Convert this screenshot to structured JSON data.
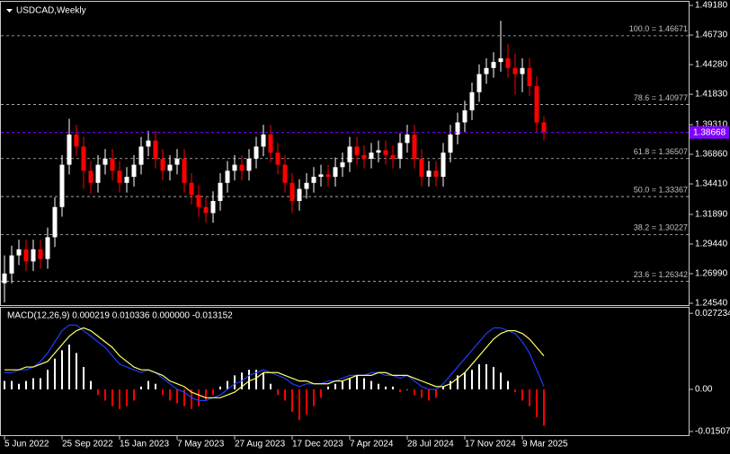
{
  "chart_data": [
    {
      "type": "candlestick",
      "title": "USDCAD,Weekly",
      "categories": [
        "5 Jun 2022",
        null,
        null,
        null,
        null,
        null,
        null,
        null,
        "25 Sep 2022",
        null,
        null,
        null,
        null,
        null,
        null,
        null,
        "15 Jan 2023",
        null,
        null,
        null,
        null,
        null,
        null,
        null,
        "7 May 2023",
        null,
        null,
        null,
        null,
        null,
        null,
        null,
        "27 Aug 2023",
        null,
        null,
        null,
        null,
        null,
        null,
        null,
        "17 Dec 2023",
        null,
        null,
        null,
        null,
        null,
        null,
        null,
        "7 Apr 2024",
        null,
        null,
        null,
        null,
        null,
        null,
        null,
        "28 Jul 2024",
        null,
        null,
        null,
        null,
        null,
        null,
        null,
        "17 Nov 2024",
        null,
        null,
        null,
        null,
        null,
        null,
        null,
        "9 Mar 2025",
        null,
        null,
        null
      ],
      "open": [
        1.262,
        1.27,
        1.285,
        1.29,
        1.28,
        1.29,
        1.282,
        1.3,
        1.325,
        1.36,
        1.385,
        1.375,
        1.355,
        1.345,
        1.36,
        1.365,
        1.355,
        1.345,
        1.35,
        1.36,
        1.375,
        1.38,
        1.365,
        1.355,
        1.36,
        1.365,
        1.345,
        1.335,
        1.325,
        1.32,
        1.33,
        1.345,
        1.355,
        1.36,
        1.355,
        1.365,
        1.375,
        1.385,
        1.37,
        1.36,
        1.345,
        1.33,
        1.34,
        1.345,
        1.35,
        1.352,
        1.35,
        1.358,
        1.362,
        1.375,
        1.368,
        1.365,
        1.37,
        1.372,
        1.368,
        1.365,
        1.378,
        1.385,
        1.365,
        1.35,
        1.355,
        1.35,
        1.37,
        1.385,
        1.395,
        1.405,
        1.42,
        1.435,
        1.44,
        1.445,
        1.448,
        1.44,
        1.435,
        1.44,
        1.425,
        1.395
      ],
      "high": [
        1.285,
        1.293,
        1.298,
        1.298,
        1.298,
        1.298,
        1.308,
        1.333,
        1.368,
        1.398,
        1.393,
        1.383,
        1.363,
        1.368,
        1.373,
        1.373,
        1.363,
        1.358,
        1.368,
        1.383,
        1.388,
        1.388,
        1.373,
        1.368,
        1.373,
        1.373,
        1.353,
        1.343,
        1.333,
        1.338,
        1.353,
        1.363,
        1.368,
        1.368,
        1.373,
        1.383,
        1.393,
        1.393,
        1.378,
        1.368,
        1.353,
        1.348,
        1.353,
        1.358,
        1.36,
        1.36,
        1.366,
        1.37,
        1.383,
        1.383,
        1.376,
        1.378,
        1.38,
        1.38,
        1.376,
        1.386,
        1.393,
        1.393,
        1.373,
        1.363,
        1.363,
        1.378,
        1.393,
        1.403,
        1.413,
        1.428,
        1.443,
        1.448,
        1.453,
        1.479,
        1.46,
        1.452,
        1.448,
        1.448,
        1.433,
        1.4
      ],
      "low": [
        1.246,
        1.262,
        1.277,
        1.272,
        1.272,
        1.274,
        1.274,
        1.292,
        1.317,
        1.352,
        1.367,
        1.34,
        1.336,
        1.337,
        1.352,
        1.347,
        1.337,
        1.337,
        1.342,
        1.352,
        1.367,
        1.357,
        1.347,
        1.347,
        1.352,
        1.337,
        1.327,
        1.317,
        1.312,
        1.312,
        1.322,
        1.337,
        1.347,
        1.347,
        1.347,
        1.357,
        1.367,
        1.362,
        1.352,
        1.337,
        1.32,
        1.322,
        1.332,
        1.337,
        1.342,
        1.342,
        1.342,
        1.35,
        1.354,
        1.36,
        1.357,
        1.357,
        1.362,
        1.36,
        1.357,
        1.357,
        1.37,
        1.357,
        1.342,
        1.342,
        1.342,
        1.342,
        1.362,
        1.377,
        1.387,
        1.397,
        1.412,
        1.427,
        1.432,
        1.437,
        1.432,
        1.418,
        1.42,
        1.417,
        1.387,
        1.38
      ],
      "close": [
        1.27,
        1.285,
        1.29,
        1.28,
        1.29,
        1.282,
        1.3,
        1.325,
        1.36,
        1.385,
        1.375,
        1.355,
        1.345,
        1.36,
        1.365,
        1.355,
        1.345,
        1.35,
        1.36,
        1.375,
        1.38,
        1.365,
        1.355,
        1.36,
        1.365,
        1.345,
        1.335,
        1.325,
        1.32,
        1.33,
        1.345,
        1.355,
        1.36,
        1.355,
        1.365,
        1.375,
        1.385,
        1.37,
        1.36,
        1.345,
        1.33,
        1.34,
        1.345,
        1.35,
        1.352,
        1.35,
        1.358,
        1.362,
        1.375,
        1.368,
        1.365,
        1.37,
        1.372,
        1.368,
        1.365,
        1.378,
        1.385,
        1.365,
        1.35,
        1.355,
        1.35,
        1.37,
        1.385,
        1.395,
        1.405,
        1.42,
        1.435,
        1.44,
        1.445,
        1.448,
        1.44,
        1.435,
        1.44,
        1.425,
        1.395,
        1.387
      ],
      "up_color": "#ffffff",
      "down_color": "#ff0000",
      "ylim": [
        1.2439,
        1.4948
      ],
      "yticks": [
        {
          "value": 1.4918,
          "label": "1.49180"
        },
        {
          "value": 1.4673,
          "label": "1.46730"
        },
        {
          "value": 1.4428,
          "label": "1.44280"
        },
        {
          "value": 1.4183,
          "label": "1.41830"
        },
        {
          "value": 1.3931,
          "label": "1.39310"
        },
        {
          "value": 1.3686,
          "label": "1.36860"
        },
        {
          "value": 1.3441,
          "label": "1.34410"
        },
        {
          "value": 1.3189,
          "label": "1.31890"
        },
        {
          "value": 1.2944,
          "label": "1.29440"
        },
        {
          "value": 1.2699,
          "label": "1.26990"
        },
        {
          "value": 1.2454,
          "label": "1.24540"
        }
      ],
      "levels": [
        {
          "value": 1.46671,
          "label": "100.0 = 1.46671"
        },
        {
          "value": 1.40977,
          "label": "78.6 = 1.40977"
        },
        {
          "value": 1.36507,
          "label": "61.8 = 1.36507"
        },
        {
          "value": 1.33367,
          "label": "50.0 = 1.33367"
        },
        {
          "value": 1.30227,
          "label": "38.2 = 1.30227"
        },
        {
          "value": 1.26342,
          "label": "23.6 = 1.26342"
        }
      ],
      "level_color": "#c0c0c0",
      "last_price": 1.38668,
      "last_price_color": "#8000ff"
    },
    {
      "type": "macd",
      "title": "MACD(12,26,9) 0.000219 0.010336 0.000000 -0.013152",
      "ylim": [
        -0.0167,
        0.0292
      ],
      "yticks": [
        0.027234,
        {
          "value": 0,
          "label": "0.00"
        },
        -0.015075
      ],
      "series": [
        {
          "style": "bar",
          "color": "#ffffff",
          "negative_color": "#ff0000",
          "values": [
            0.003,
            0.003,
            0.002,
            0.003,
            0.004,
            0.004,
            0.007,
            0.011,
            0.014,
            0.016,
            0.013,
            0.008,
            0.003,
            -0.002,
            -0.004,
            -0.006,
            -0.007,
            -0.006,
            -0.004,
            0.001,
            0.003,
            0.002,
            -0.002,
            -0.004,
            -0.005,
            -0.006,
            -0.007,
            -0.006,
            -0.004,
            -0.002,
            0.001,
            0.003,
            0.005,
            0.006,
            0.007,
            0.007,
            0.006,
            0.002,
            -0.002,
            -0.004,
            -0.008,
            -0.011,
            -0.009,
            -0.006,
            -0.003,
            0.001,
            0.002,
            0.003,
            0.004,
            0.005,
            0.004,
            0.003,
            0.002,
            0.001,
            0.001,
            -0.001,
            0.0,
            -0.002,
            -0.003,
            -0.004,
            -0.003,
            0.001,
            0.003,
            0.005,
            0.006,
            0.007,
            0.009,
            0.009,
            0.008,
            0.006,
            0.003,
            -0.001,
            -0.004,
            -0.006,
            -0.01,
            -0.013
          ]
        },
        {
          "style": "line",
          "color": "#1e3cff",
          "values": [
            0.006,
            0.006,
            0.007,
            0.007,
            0.008,
            0.01,
            0.013,
            0.017,
            0.021,
            0.023,
            0.023,
            0.021,
            0.019,
            0.017,
            0.015,
            0.012,
            0.009,
            0.008,
            0.007,
            0.006,
            0.007,
            0.006,
            0.004,
            0.002,
            0.0,
            -0.001,
            -0.003,
            -0.004,
            -0.004,
            -0.003,
            -0.002,
            0.0,
            0.002,
            0.003,
            0.005,
            0.006,
            0.007,
            0.006,
            0.005,
            0.004,
            0.002,
            0.001,
            0.002,
            0.002,
            0.002,
            0.003,
            0.003,
            0.004,
            0.005,
            0.005,
            0.005,
            0.006,
            0.006,
            0.005,
            0.005,
            0.004,
            0.005,
            0.003,
            0.001,
            0.0,
            0.0,
            0.002,
            0.005,
            0.008,
            0.011,
            0.014,
            0.017,
            0.02,
            0.022,
            0.022,
            0.021,
            0.02,
            0.017,
            0.013,
            0.007,
            0.001
          ]
        },
        {
          "style": "line",
          "color": "#ffff66",
          "values": [
            0.007,
            0.007,
            0.007,
            0.008,
            0.008,
            0.009,
            0.01,
            0.013,
            0.016,
            0.019,
            0.021,
            0.022,
            0.021,
            0.019,
            0.017,
            0.015,
            0.012,
            0.01,
            0.008,
            0.007,
            0.007,
            0.006,
            0.005,
            0.003,
            0.002,
            0.001,
            -0.001,
            -0.002,
            -0.003,
            -0.003,
            -0.003,
            -0.002,
            -0.001,
            0.001,
            0.003,
            0.004,
            0.006,
            0.006,
            0.006,
            0.005,
            0.004,
            0.003,
            0.003,
            0.002,
            0.002,
            0.002,
            0.003,
            0.003,
            0.004,
            0.005,
            0.005,
            0.005,
            0.006,
            0.006,
            0.005,
            0.005,
            0.005,
            0.004,
            0.003,
            0.002,
            0.001,
            0.001,
            0.002,
            0.004,
            0.006,
            0.009,
            0.012,
            0.015,
            0.018,
            0.02,
            0.021,
            0.021,
            0.02,
            0.018,
            0.015,
            0.012
          ]
        }
      ]
    }
  ]
}
